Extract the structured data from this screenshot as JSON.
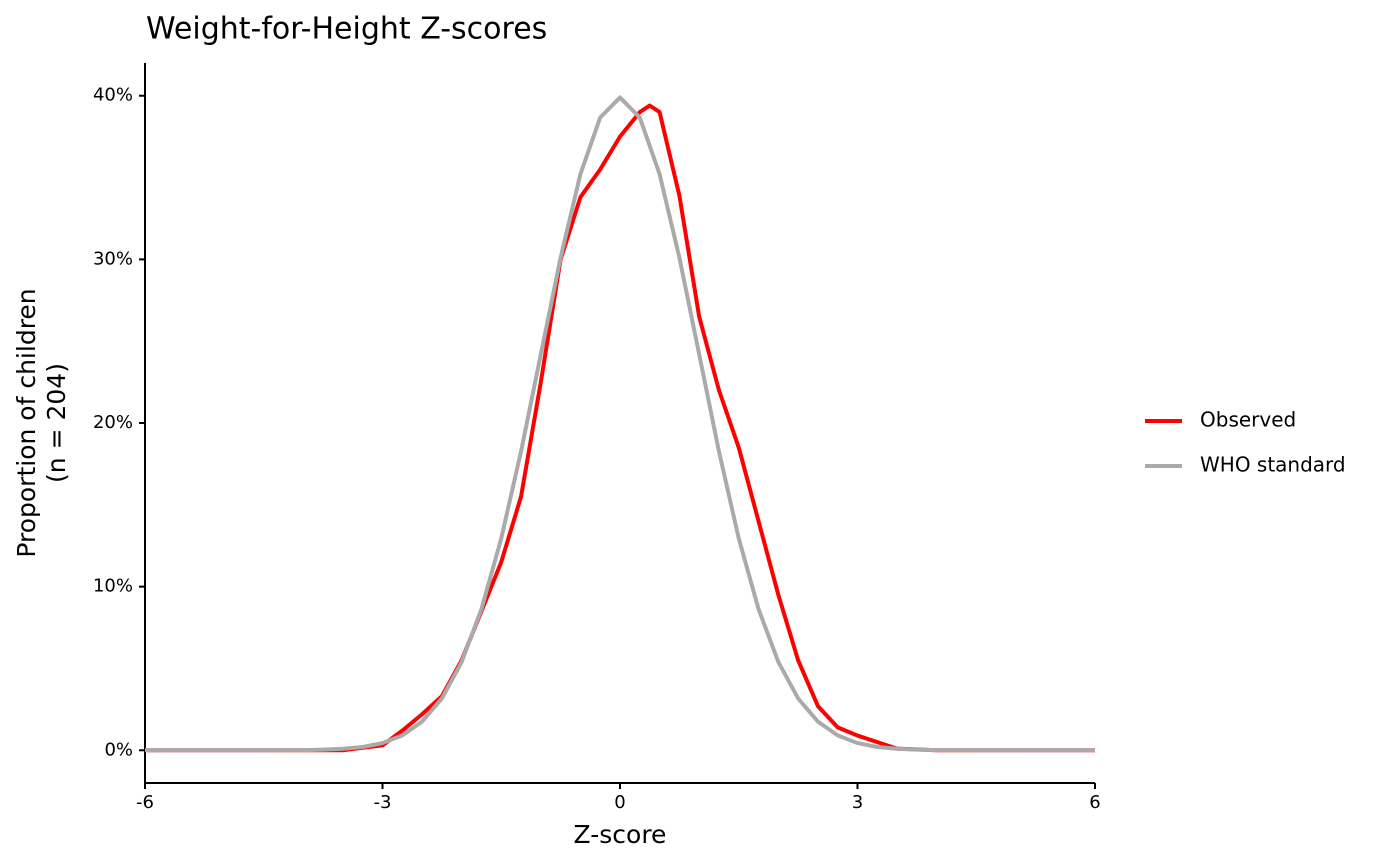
{
  "chart_data": {
    "type": "line",
    "title": "Weight-for-Height Z-scores",
    "xlabel": "Z-score",
    "ylabel": [
      "Proportion of children",
      "(n = 204)"
    ],
    "xlim": [
      -6,
      6
    ],
    "xticks": [
      -6,
      -3,
      0,
      3,
      6
    ],
    "ylim": [
      -2,
      42
    ],
    "yticks": [
      {
        "value": 0,
        "label": "0%"
      },
      {
        "value": 10,
        "label": "10%"
      },
      {
        "value": 20,
        "label": "20%"
      },
      {
        "value": 30,
        "label": "30%"
      },
      {
        "value": 40,
        "label": "40%"
      }
    ],
    "grid": false,
    "legend": "right",
    "series": [
      {
        "name": "Observed",
        "color": "#ff0000",
        "x": [
          -6,
          -4,
          -3.5,
          -3,
          -2.75,
          -2.5,
          -2.25,
          -2,
          -1.75,
          -1.5,
          -1.25,
          -1,
          -0.75,
          -0.5,
          -0.25,
          0,
          0.25,
          0.375,
          0.5,
          0.75,
          1,
          1.25,
          1.5,
          1.75,
          2,
          2.25,
          2.5,
          2.75,
          3,
          3.25,
          3.5,
          4,
          6
        ],
        "values": [
          0,
          0,
          0,
          0.3,
          1.2,
          2.2,
          3.3,
          5.5,
          8.5,
          11.5,
          15.5,
          22.5,
          30,
          33.8,
          35.5,
          37.5,
          39,
          39.4,
          39,
          33.9,
          26.5,
          22,
          18.5,
          14,
          9.5,
          5.5,
          2.7,
          1.4,
          0.9,
          0.5,
          0.1,
          0,
          0
        ]
      },
      {
        "name": "WHO standard",
        "color": "#aaaaaa",
        "x": [
          -6,
          -5,
          -4,
          -3.75,
          -3.5,
          -3.25,
          -3,
          -2.75,
          -2.5,
          -2.25,
          -2,
          -1.75,
          -1.5,
          -1.25,
          -1,
          -0.75,
          -0.5,
          -0.25,
          0,
          0.25,
          0.5,
          0.75,
          1,
          1.25,
          1.5,
          1.75,
          2,
          2.25,
          2.5,
          2.75,
          3,
          3.25,
          3.5,
          3.75,
          4,
          5,
          6
        ],
        "values": [
          0,
          0,
          0.01,
          0.04,
          0.09,
          0.2,
          0.44,
          0.91,
          1.75,
          3.17,
          5.4,
          8.63,
          12.95,
          18.26,
          24.2,
          30.11,
          35.21,
          38.67,
          39.89,
          38.67,
          35.21,
          30.11,
          24.2,
          18.26,
          12.95,
          8.63,
          5.4,
          3.17,
          1.75,
          0.91,
          0.44,
          0.2,
          0.09,
          0.04,
          0.01,
          0,
          0
        ]
      }
    ]
  }
}
